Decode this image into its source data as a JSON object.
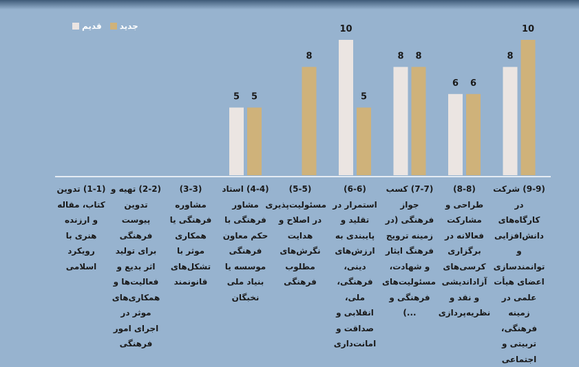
{
  "chart_data": {
    "type": "bar",
    "categories": [
      "(1-1) تدوین کتاب، مقاله و ارزنده هنری با رویکرد اسلامی",
      "(2-2) تهیه و تدوین پیوست فرهنگی برای تولید اثر بدیع و فعالیت‌ها و همکاری‌های موثر در اجرای امور فرهنگی",
      "(3-3) مشاوره فرهنگی یا همکاری موثر با تشکل‌های قانونمند",
      "(4-4) استاد مشاور فرهنگی با حکم معاون فرهنگی موسسه یا بنیاد ملی نخبگان",
      "(5-5) مسئولیت‌پذیری در اصلاح و هدایت نگرش‌های مطلوب فرهنگی",
      "(6-6) استمرار در تقلید و پایبندی به ارزش‌های دینی، فرهنگی، ملی، انقلابی و صداقت و امانت‌داری",
      "(7-7) کسب جواز فرهنگی (در زمینه ترویج فرهنگ ایثار و شهادت، مسئولیت‌های فرهنگی و ...)",
      "(8-8) طراحی و مشارکت فعالانه در برگزاری کرسی‌های آزاداندیشی و نقد و نظریه‌پردازی",
      "(9-9) شرکت در کارگاه‌های دانش‌افزایی و توانمندسازی اعضای هیأت علمی در زمینه فرهنگی، تربیتی و اجتماعی"
    ],
    "series": [
      {
        "name": "قدیم",
        "color": "#ebe5e2",
        "values": [
          null,
          null,
          null,
          5,
          null,
          10,
          8,
          6,
          8
        ]
      },
      {
        "name": "جدید",
        "color": "#cfb27a",
        "values": [
          null,
          null,
          null,
          5,
          8,
          5,
          8,
          6,
          10
        ]
      }
    ],
    "ylim": [
      0,
      10
    ],
    "grid": false,
    "legend": "top-left",
    "title": "",
    "xlabel": "",
    "ylabel": ""
  }
}
